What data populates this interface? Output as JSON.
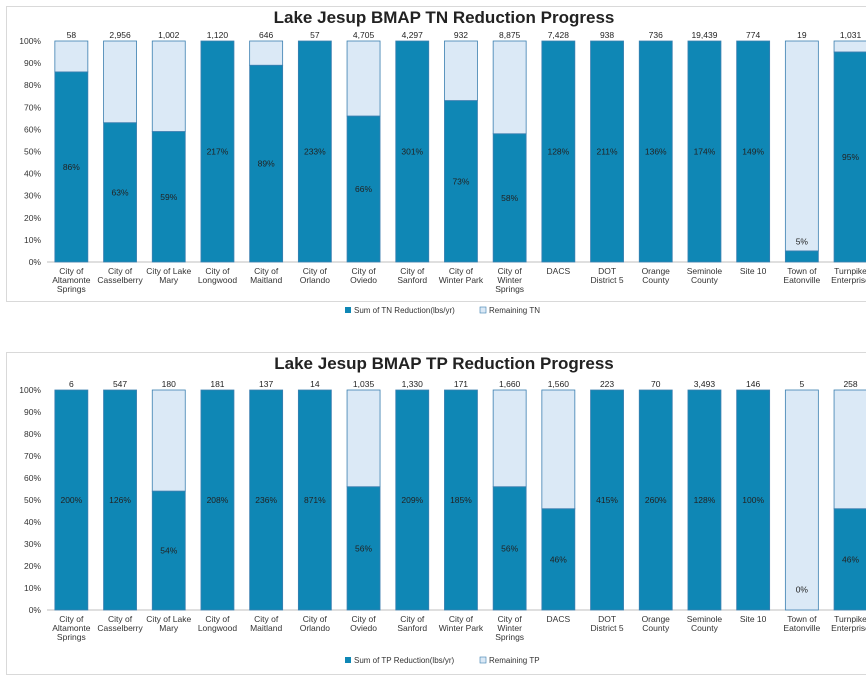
{
  "colors": {
    "reduction": "#0f87b5",
    "remaining": "#dbe9f6",
    "border": "#3b7fb0"
  },
  "chart_data": [
    {
      "type": "bar",
      "stacked": "percent",
      "title": "Lake Jesup BMAP TN Reduction Progress",
      "categories": [
        [
          "City of",
          "Altamonte",
          "Springs"
        ],
        [
          "City of",
          "Casselberry"
        ],
        [
          "City of Lake",
          "Mary"
        ],
        [
          "City of",
          "Longwood"
        ],
        [
          "City of",
          "Maitland"
        ],
        [
          "City of",
          "Orlando"
        ],
        [
          "City of",
          "Oviedo"
        ],
        [
          "City of",
          "Sanford"
        ],
        [
          "City of",
          "Winter Park"
        ],
        [
          "City of",
          "Winter",
          "Springs"
        ],
        [
          "DACS"
        ],
        [
          "DOT",
          "District 5"
        ],
        [
          "Orange",
          "County"
        ],
        [
          "Seminole",
          "County"
        ],
        [
          "Site 10"
        ],
        [
          "Town of",
          "Eatonville"
        ],
        [
          "Turnpike",
          "Enterprise"
        ]
      ],
      "totals": [
        "58",
        "2,956",
        "1,002",
        "1,120",
        "646",
        "57",
        "4,705",
        "4,297",
        "932",
        "8,875",
        "7,428",
        "938",
        "736",
        "19,439",
        "774",
        "19",
        "1,031"
      ],
      "percent_labels": [
        "86%",
        "63%",
        "59%",
        "217%",
        "89%",
        "233%",
        "66%",
        "301%",
        "73%",
        "58%",
        "128%",
        "211%",
        "136%",
        "174%",
        "149%",
        "5%",
        "95%"
      ],
      "achieved_fraction": [
        0.86,
        0.63,
        0.59,
        1,
        0.89,
        1,
        0.66,
        1,
        0.73,
        0.58,
        1,
        1,
        1,
        1,
        1,
        0.05,
        0.95
      ],
      "series": [
        {
          "name": "Sum of TN Reduction(lbs/yr)"
        },
        {
          "name": "Remaining TN"
        }
      ],
      "yticks": [
        "100%",
        "90%",
        "80%",
        "70%",
        "60%",
        "50%",
        "40%",
        "30%",
        "20%",
        "10%",
        "0%"
      ],
      "ylim": [
        0,
        100
      ],
      "legend": "bottom"
    },
    {
      "type": "bar",
      "stacked": "percent",
      "title": "Lake Jesup BMAP TP Reduction Progress",
      "categories": [
        [
          "City of",
          "Altamonte",
          "Springs"
        ],
        [
          "City of",
          "Casselberry"
        ],
        [
          "City of Lake",
          "Mary"
        ],
        [
          "City of",
          "Longwood"
        ],
        [
          "City of",
          "Maitland"
        ],
        [
          "City of",
          "Orlando"
        ],
        [
          "City of",
          "Oviedo"
        ],
        [
          "City of",
          "Sanford"
        ],
        [
          "City of",
          "Winter Park"
        ],
        [
          "City of",
          "Winter",
          "Springs"
        ],
        [
          "DACS"
        ],
        [
          "DOT",
          "District 5"
        ],
        [
          "Orange",
          "County"
        ],
        [
          "Seminole",
          "County"
        ],
        [
          "Site 10"
        ],
        [
          "Town of",
          "Eatonville"
        ],
        [
          "Turnpike",
          "Enterprise"
        ]
      ],
      "totals": [
        "6",
        "547",
        "180",
        "181",
        "137",
        "14",
        "1,035",
        "1,330",
        "171",
        "1,660",
        "1,560",
        "223",
        "70",
        "3,493",
        "146",
        "5",
        "258"
      ],
      "percent_labels": [
        "200%",
        "126%",
        "54%",
        "208%",
        "236%",
        "871%",
        "56%",
        "209%",
        "185%",
        "56%",
        "46%",
        "415%",
        "260%",
        "128%",
        "100%",
        "0%",
        "46%"
      ],
      "achieved_fraction": [
        1,
        1,
        0.54,
        1,
        1,
        1,
        0.56,
        1,
        1,
        0.56,
        0.46,
        1,
        1,
        1,
        1,
        0,
        0.46
      ],
      "series": [
        {
          "name": "Sum of TP Reduction(lbs/yr)"
        },
        {
          "name": "Remaining TP"
        }
      ],
      "yticks": [
        "100%",
        "90%",
        "80%",
        "70%",
        "60%",
        "50%",
        "40%",
        "30%",
        "20%",
        "10%",
        "0%"
      ],
      "ylim": [
        0,
        100
      ],
      "legend": "bottom"
    }
  ]
}
